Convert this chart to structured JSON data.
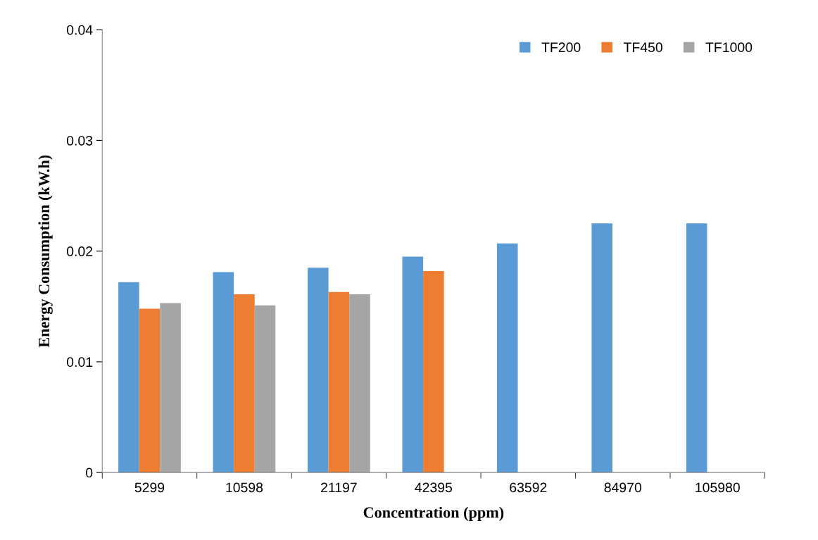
{
  "chart_data": {
    "type": "bar",
    "xlabel": "Concentration (ppm)",
    "ylabel": "Energy Consumption (kW.h)",
    "categories": [
      "5299",
      "10598",
      "21197",
      "42395",
      "63592",
      "84970",
      "105980"
    ],
    "series": [
      {
        "name": "TF200",
        "color": "#5b9bd5",
        "values": [
          0.0172,
          0.0181,
          0.0185,
          0.0195,
          0.0207,
          0.0225,
          0.0225
        ]
      },
      {
        "name": "TF450",
        "color": "#ed7d31",
        "values": [
          0.0148,
          0.0161,
          0.0163,
          0.0182,
          null,
          null,
          null
        ]
      },
      {
        "name": "TF1000",
        "color": "#a5a5a5",
        "values": [
          0.0153,
          0.0151,
          0.0161,
          null,
          null,
          null,
          null
        ]
      }
    ],
    "ylim": [
      0,
      0.04
    ],
    "yticks": [
      {
        "value": 0,
        "label": "0"
      },
      0.01,
      0.02,
      0.03,
      0.04
    ],
    "grid": false,
    "legend": "top right"
  }
}
